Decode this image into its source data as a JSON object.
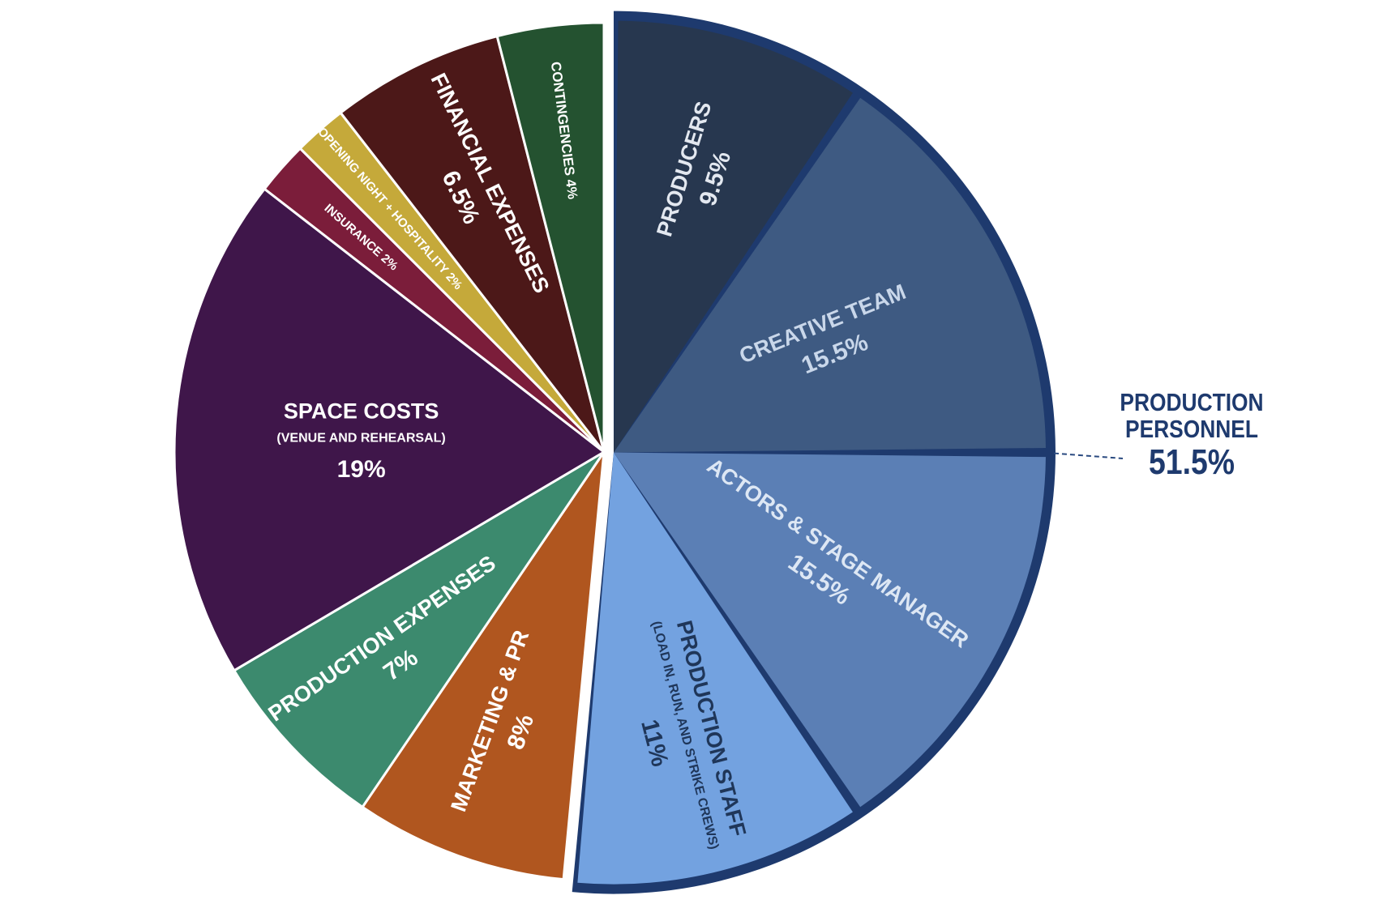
{
  "chart_data": {
    "type": "pie",
    "slices": [
      {
        "label": "PRODUCERS",
        "value": 9.5,
        "value_label": "9.5%",
        "color": "#27374f",
        "text_color": "#e3e8f0",
        "group": "production_personnel"
      },
      {
        "label": "CREATIVE TEAM",
        "value": 15.5,
        "value_label": "15.5%",
        "color": "#3e5a82",
        "text_color": "#c9d7ea",
        "group": "production_personnel"
      },
      {
        "label": "ACTORS & STAGE MANAGER",
        "value": 15.5,
        "value_label": "15.5%",
        "color": "#5b7fb5",
        "text_color": "#dde7f4",
        "group": "production_personnel"
      },
      {
        "label": "PRODUCTION STAFF",
        "sublabel": "(LOAD IN, RUN, AND STRIKE CREWS)",
        "value": 11,
        "value_label": "11%",
        "color": "#73a2e0",
        "text_color": "#1f3659",
        "group": "production_personnel"
      },
      {
        "label": "MARKETING & PR",
        "value": 8,
        "value_label": "8%",
        "color": "#b0561f",
        "text_color": "#ffffff"
      },
      {
        "label": "PRODUCTION EXPENSES",
        "value": 7,
        "value_label": "7%",
        "color": "#3c8a6e",
        "text_color": "#ffffff"
      },
      {
        "label": "SPACE COSTS",
        "sublabel": "(VENUE AND REHEARSAL)",
        "value": 19,
        "value_label": "19%",
        "color": "#3f164a",
        "text_color": "#ffffff"
      },
      {
        "label": "INSURANCE",
        "value": 2,
        "value_label": "2%",
        "color": "#7b1d3a",
        "text_color": "#ffffff"
      },
      {
        "label": "OPENING NIGHT + HOSPITALITY",
        "value": 2,
        "value_label": "2%",
        "color": "#c5a93a",
        "text_color": "#ffffff"
      },
      {
        "label": "FINANCIAL EXPENSES",
        "value": 6.5,
        "value_label": "6.5%",
        "color": "#4c1818",
        "text_color": "#ffffff"
      },
      {
        "label": "CONTINGENCIES",
        "value": 4,
        "value_label": "4%",
        "color": "#245230",
        "text_color": "#ffffff"
      }
    ],
    "group": {
      "name_line1": "PRODUCTION",
      "name_line2": "PERSONNEL",
      "value_label": "51.5%",
      "value": 51.5,
      "color": "#1e3a6e",
      "connector_color": "#2a4a80"
    },
    "start_angle_deg": 0,
    "direction": "clockwise"
  }
}
